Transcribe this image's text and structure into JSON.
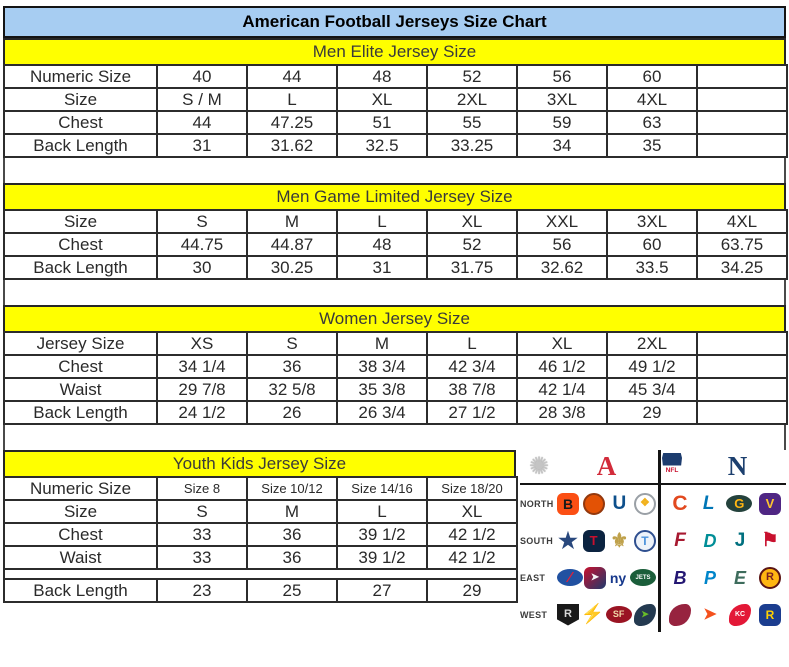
{
  "title": "American Football Jerseys Size Chart",
  "colors": {
    "title_bg": "#a7cdf2",
    "section_bg": "#ffff00",
    "grid_border": "#2c2c2c",
    "afc_red": "#d22b3a",
    "nfc_blue": "#1c3f6e"
  },
  "tables": [
    {
      "header": "Men Elite Jersey Size",
      "rows": [
        {
          "label": "Numeric Size",
          "cells": [
            "40",
            "44",
            "48",
            "52",
            "56",
            "60",
            ""
          ]
        },
        {
          "label": "Size",
          "cells": [
            "S / M",
            "L",
            "XL",
            "2XL",
            "3XL",
            "4XL",
            ""
          ]
        },
        {
          "label": "Chest",
          "cells": [
            "44",
            "47.25",
            "51",
            "55",
            "59",
            "63",
            ""
          ]
        },
        {
          "label": "Back Length",
          "cells": [
            "31",
            "31.62",
            "32.5",
            "33.25",
            "34",
            "35",
            ""
          ]
        }
      ]
    },
    {
      "header": "Men Game Limited Jersey Size",
      "rows": [
        {
          "label": "Size",
          "cells": [
            "S",
            "M",
            "L",
            "XL",
            "XXL",
            "3XL",
            "4XL"
          ]
        },
        {
          "label": "Chest",
          "cells": [
            "44.75",
            "44.87",
            "48",
            "52",
            "56",
            "60",
            "63.75"
          ]
        },
        {
          "label": "Back Length",
          "cells": [
            "30",
            "30.25",
            "31",
            "31.75",
            "32.62",
            "33.5",
            "34.25"
          ]
        }
      ]
    },
    {
      "header": "Women Jersey Size",
      "rows": [
        {
          "label": "Jersey Size",
          "cells": [
            "XS",
            "S",
            "M",
            "L",
            "XL",
            "2XL",
            ""
          ]
        },
        {
          "label": "Chest",
          "cells": [
            "34 1/4",
            "36",
            "38 3/4",
            "42 3/4",
            "46 1/2",
            "49 1/2",
            ""
          ]
        },
        {
          "label": "Waist",
          "cells": [
            "29 7/8",
            "32 5/8",
            "35 3/8",
            "38 7/8",
            "42 1/4",
            "45 3/4",
            ""
          ]
        },
        {
          "label": "Back Length",
          "cells": [
            "24 1/2",
            "26",
            "26 3/4",
            "27 1/2",
            "28 3/8",
            "29",
            ""
          ]
        }
      ]
    },
    {
      "header": "Youth Kids Jersey Size",
      "rows": [
        {
          "label": "Numeric Size",
          "cells": [
            "Size 8",
            "Size 10/12",
            "Size 14/16",
            "Size 18/20"
          ],
          "small": true
        },
        {
          "label": "Size",
          "cells": [
            "S",
            "M",
            "L",
            "XL"
          ]
        },
        {
          "label": "Chest",
          "cells": [
            "33",
            "36",
            "39 1/2",
            "42 1/2"
          ]
        },
        {
          "label": "Waist",
          "cells": [
            "33",
            "36",
            "39 1/2",
            "42 1/2"
          ]
        },
        {
          "label": "Back Length",
          "cells": [
            "23",
            "25",
            "27",
            "29"
          ],
          "spacer_before": true
        }
      ]
    }
  ],
  "logo_panel": {
    "starburst_glyph": "✺",
    "afc_glyph": "A",
    "afc_color": "#d22b3a",
    "nfl_shield_label": "NFL",
    "nfc_glyph": "N",
    "nfc_color": "#1c3f6e",
    "divisions": [
      {
        "label": "NORTH",
        "afc": [
          {
            "team": "bengals",
            "shape": "round",
            "bg": "#fb4f14",
            "fg": "#1a1a1a",
            "glyph": "B",
            "fs": 14
          },
          {
            "team": "browns",
            "shape": "circle",
            "bg": "#e35205",
            "fg": "#ffffff",
            "glyph": "",
            "border": "2px solid #93380d"
          },
          {
            "team": "colts",
            "shape": "plain",
            "fg": "#0d4f8b",
            "glyph": "U",
            "fs": 19
          },
          {
            "team": "steelers",
            "shape": "circle",
            "bg": "#ffffff",
            "fg": "#f1b11c",
            "glyph": "❖",
            "fs": 11,
            "border": "2px solid #9aa0a6"
          }
        ],
        "nfc": [
          {
            "team": "bears",
            "shape": "plain",
            "fg": "#e2491f",
            "glyph": "C",
            "fs": 21
          },
          {
            "team": "lions",
            "shape": "plain",
            "fg": "#0076b6",
            "glyph": "L",
            "fs": 19,
            "italic": true
          },
          {
            "team": "packers",
            "shape": "oval",
            "bg": "#24423c",
            "fg": "#ffb612",
            "glyph": "G",
            "fs": 13
          },
          {
            "team": "vikings",
            "shape": "round",
            "bg": "#4f2683",
            "fg": "#ffc62f",
            "glyph": "V",
            "fs": 13
          }
        ]
      },
      {
        "label": "SOUTH",
        "afc": [
          {
            "team": "cowboys-star",
            "shape": "plain",
            "fg": "#29487d",
            "glyph": "★",
            "fs": 22
          },
          {
            "team": "texans",
            "shape": "round",
            "bg": "#0b2340",
            "fg": "#c8102e",
            "glyph": "T",
            "fs": 13
          },
          {
            "team": "saints",
            "shape": "plain",
            "fg": "#bfa14a",
            "glyph": "⚜",
            "fs": 20
          },
          {
            "team": "titans",
            "shape": "circle",
            "bg": "#eef3fa",
            "fg": "#4b92db",
            "glyph": "T",
            "fs": 12,
            "border": "2px solid #2f4f8f"
          }
        ],
        "nfc": [
          {
            "team": "falcons",
            "shape": "plain",
            "fg": "#a71930",
            "glyph": "F",
            "fs": 19,
            "italic": true
          },
          {
            "team": "dolphins",
            "shape": "plain",
            "fg": "#008e97",
            "glyph": "D",
            "fs": 18,
            "italic": true
          },
          {
            "team": "jaguars",
            "shape": "plain",
            "fg": "#00707f",
            "glyph": "J",
            "fs": 19
          },
          {
            "team": "buccaneers",
            "shape": "plain",
            "fg": "#c8102e",
            "glyph": "⚑",
            "fs": 19
          }
        ]
      },
      {
        "label": "EAST",
        "afc": [
          {
            "team": "bills",
            "shape": "oval",
            "bg": "#2151a1",
            "fg": "#e0203a",
            "glyph": "⁄",
            "fs": 15
          },
          {
            "team": "patriots",
            "shape": "round",
            "bg": "#c8102e",
            "bg2": "#1d3a6d",
            "fg": "#f5f5f5",
            "glyph": "➤",
            "fs": 10
          },
          {
            "team": "giants",
            "shape": "plain",
            "fg": "#16388c",
            "glyph": "ny",
            "fs": 14
          },
          {
            "team": "jets",
            "shape": "oval",
            "bg": "#1b5e3a",
            "fg": "#ffffff",
            "glyph": "JETS",
            "fs": 6
          }
        ],
        "nfc": [
          {
            "team": "ravens",
            "shape": "plain",
            "fg": "#241773",
            "glyph": "B",
            "fs": 18,
            "italic": true
          },
          {
            "team": "panthers",
            "shape": "plain",
            "fg": "#0085ca",
            "glyph": "P",
            "fs": 18,
            "italic": true
          },
          {
            "team": "eagles",
            "shape": "plain",
            "fg": "#3d6c5c",
            "glyph": "E",
            "fs": 18,
            "italic": true
          },
          {
            "team": "redskins",
            "shape": "circle",
            "bg": "#ffb612",
            "fg": "#7a2020",
            "glyph": "R",
            "fs": 11,
            "border": "2px solid #5a1414"
          }
        ]
      },
      {
        "label": "WEST",
        "afc": [
          {
            "team": "raiders",
            "shape": "shield",
            "bg": "#191919",
            "fg": "#d8d8d8",
            "glyph": "R",
            "fs": 11
          },
          {
            "team": "chargers",
            "shape": "plain",
            "fg": "#f2b600",
            "glyph": "⚡",
            "fs": 19
          },
          {
            "team": "49ers",
            "shape": "oval",
            "bg": "#9a1423",
            "fg": "#f0d9a8",
            "glyph": "SF",
            "fs": 9
          },
          {
            "team": "seahawks",
            "shape": "leaf",
            "bg": "#243a50",
            "fg": "#69be28",
            "glyph": "➤",
            "fs": 9
          }
        ],
        "nfc": [
          {
            "team": "cardinals",
            "shape": "leaf",
            "bg": "#97233f",
            "fg": "#ffffff",
            "glyph": "",
            "fs": 9
          },
          {
            "team": "broncos",
            "shape": "plain",
            "fg": "#f4511e",
            "glyph": "➤",
            "fs": 16
          },
          {
            "team": "chiefs",
            "shape": "leaf",
            "bg": "#e31837",
            "fg": "#ffffff",
            "glyph": "KC",
            "fs": 7
          },
          {
            "team": "rams",
            "shape": "round",
            "bg": "#1b3d8f",
            "fg": "#ffd100",
            "glyph": "R",
            "fs": 12
          }
        ]
      }
    ]
  }
}
